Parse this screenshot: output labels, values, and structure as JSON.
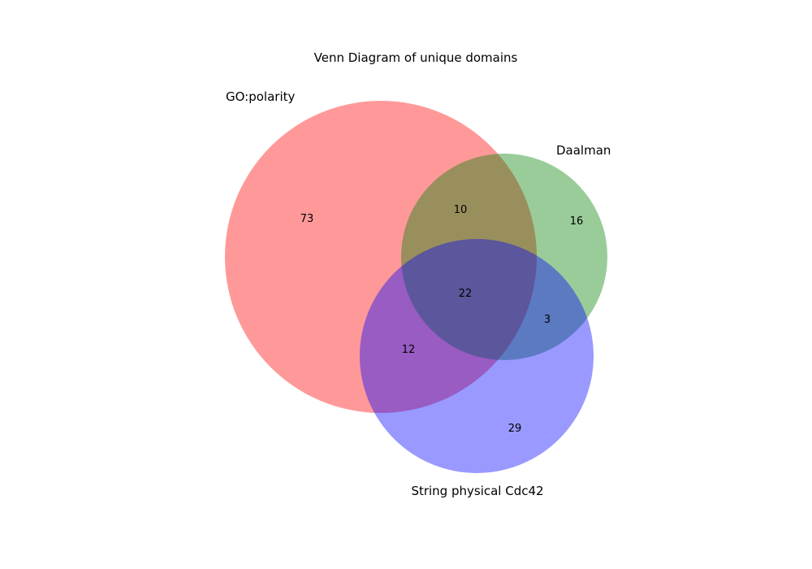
{
  "diagram": {
    "title": "Venn Diagram of unique domains",
    "sets": [
      {
        "id": "A",
        "label": "GO:polarity",
        "color": "#ff9999"
      },
      {
        "id": "B",
        "label": "Daalman",
        "color": "#99cc99"
      },
      {
        "id": "C",
        "label": "String physical Cdc42",
        "color": "#9999ff"
      }
    ],
    "regions": {
      "A_only": "73",
      "B_only": "16",
      "C_only": "29",
      "AB": "10",
      "AC": "12",
      "BC": "3",
      "ABC": "22"
    }
  }
}
